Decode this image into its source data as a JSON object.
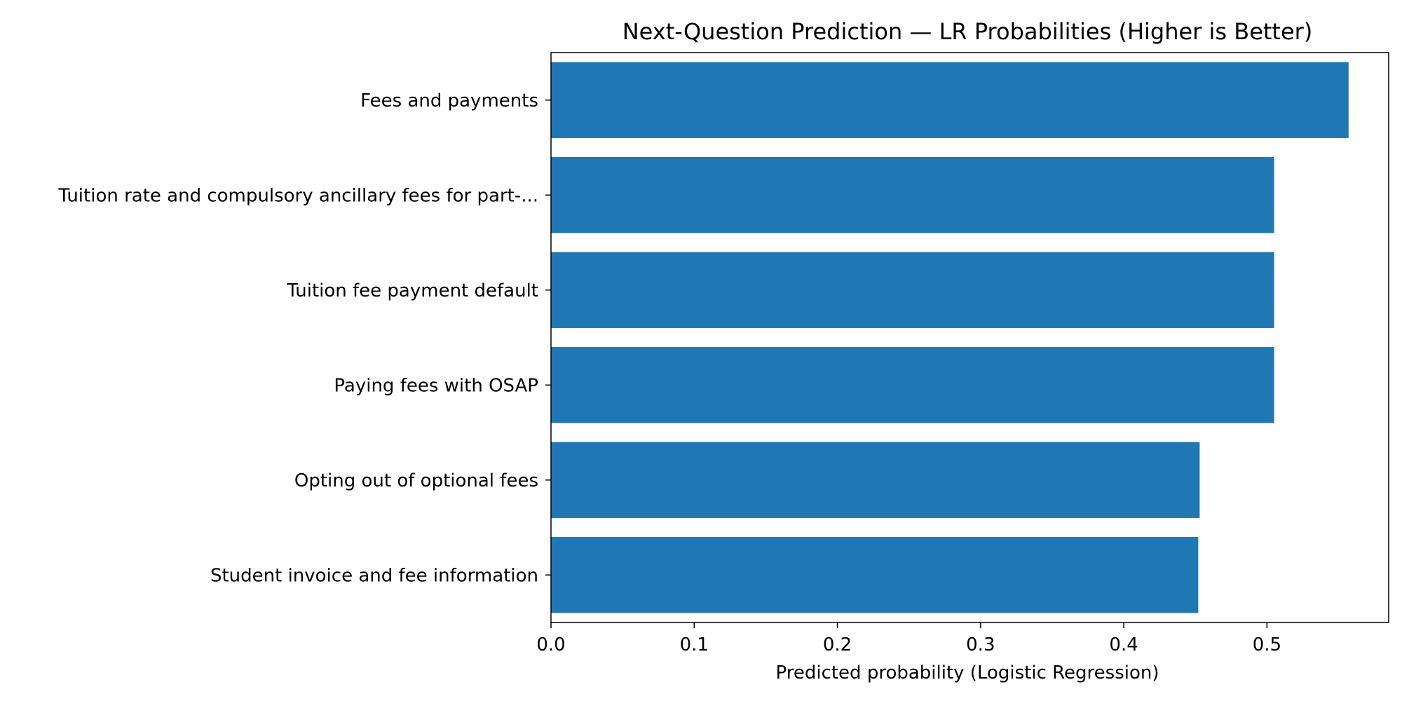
{
  "chart_data": {
    "type": "bar",
    "orientation": "horizontal",
    "title": "Next-Question Prediction — LR Probabilities (Higher is Better)",
    "xlabel": "Predicted probability (Logistic Regression)",
    "ylabel": "",
    "categories": [
      "Fees and payments",
      "Tuition rate and compulsory ancillary fees for part-...",
      "Tuition fee payment default",
      "Paying fees with OSAP",
      "Opting out of optional fees",
      "Student invoice and fee information"
    ],
    "values": [
      0.557,
      0.505,
      0.505,
      0.505,
      0.453,
      0.452
    ],
    "xlim": [
      0,
      0.585
    ],
    "xticks": [
      0.0,
      0.1,
      0.2,
      0.3,
      0.4,
      0.5
    ],
    "xtick_labels": [
      "0.0",
      "0.1",
      "0.2",
      "0.3",
      "0.4",
      "0.5"
    ],
    "grid": false,
    "bar_color": "#1f77b4"
  }
}
